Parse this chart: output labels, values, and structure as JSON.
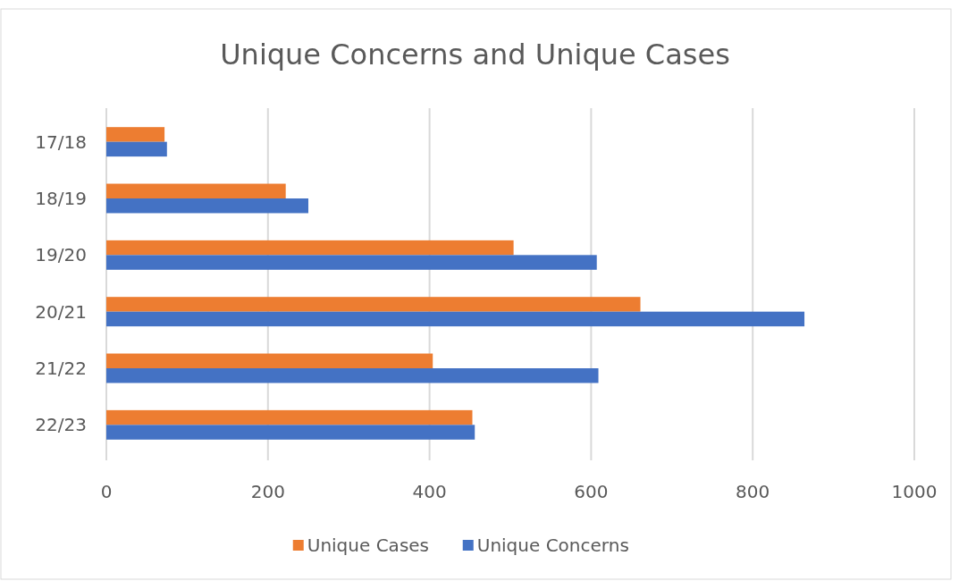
{
  "chart_data": {
    "type": "bar",
    "orientation": "horizontal",
    "title": "Unique Concerns and Unique Cases",
    "categories": [
      "17/18",
      "18/19",
      "19/20",
      "20/21",
      "21/22",
      "22/23"
    ],
    "series": [
      {
        "name": "Unique Cases",
        "color": "#ed7d31",
        "values": [
          72,
          222,
          504,
          661,
          404,
          453
        ]
      },
      {
        "name": "Unique Concerns",
        "color": "#4472c4",
        "values": [
          75,
          250,
          607,
          864,
          609,
          456
        ]
      }
    ],
    "xlim": [
      0,
      1000
    ],
    "xticks": [
      0,
      200,
      400,
      600,
      800,
      1000
    ],
    "grid": "x",
    "legend": "bottom"
  }
}
